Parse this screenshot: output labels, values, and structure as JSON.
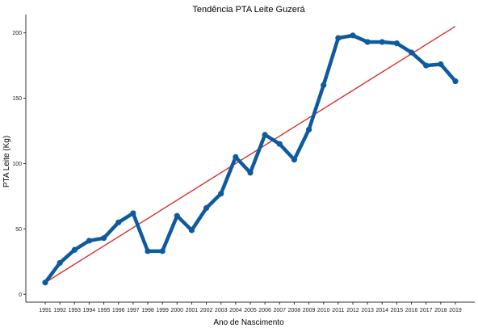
{
  "chart_data": {
    "type": "line",
    "title": "Tendência PTA Leite Guzerá",
    "xlabel": "Ano de Nascimento",
    "ylabel": "PTA Leite (Kg)",
    "ylim": [
      -6,
      214
    ],
    "yticks": [
      0,
      50,
      100,
      150,
      200
    ],
    "grid": false,
    "x": [
      "1991",
      "1992",
      "1993",
      "1994",
      "1995",
      "1996",
      "1997",
      "1998",
      "1999",
      "2000",
      "2001",
      "2002",
      "2003",
      "2004",
      "2005",
      "2006",
      "2007",
      "2008",
      "2009",
      "2010",
      "2011",
      "2012",
      "2013",
      "2014",
      "2015",
      "2016",
      "2017",
      "2018",
      "2019"
    ],
    "series": [
      {
        "values": [
          9,
          24,
          34,
          41,
          43,
          55,
          62,
          33,
          33,
          60,
          49,
          66,
          77,
          105,
          93,
          122,
          115,
          103,
          126,
          160,
          196,
          198,
          193,
          193,
          192,
          185,
          175,
          176,
          163
        ],
        "color": "#0e5a9e"
      }
    ],
    "trend": {
      "start": 9,
      "end": 205,
      "color": "#d73027"
    }
  }
}
